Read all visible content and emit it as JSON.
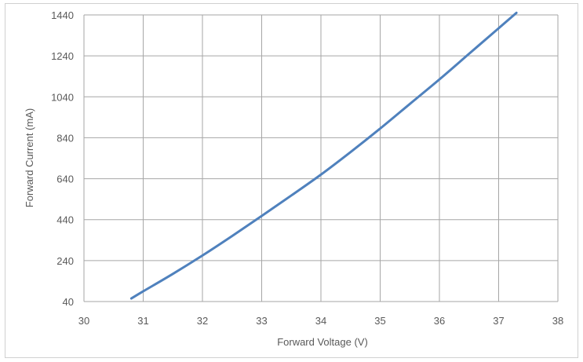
{
  "chart_data": {
    "type": "line",
    "title": "",
    "xlabel": "Forward Voltage (V)",
    "ylabel": "Forward Current (mA)",
    "xlim": [
      30,
      38
    ],
    "ylim": [
      40,
      1440
    ],
    "x_ticks": [
      "30",
      "31",
      "32",
      "33",
      "34",
      "35",
      "36",
      "37",
      "38"
    ],
    "y_ticks": [
      "40",
      "240",
      "440",
      "640",
      "840",
      "1040",
      "1240",
      "1440"
    ],
    "grid": true,
    "legend": "none",
    "series": [
      {
        "color": "#4f81bd",
        "x": [
          30.8,
          31.0,
          31.5,
          32.0,
          32.5,
          33.0,
          33.5,
          34.0,
          34.5,
          35.0,
          35.5,
          36.0,
          36.5,
          37.0,
          37.3
        ],
        "y": [
          55,
          90,
          175,
          265,
          360,
          458,
          558,
          660,
          770,
          885,
          1005,
          1125,
          1250,
          1375,
          1450
        ]
      }
    ]
  }
}
